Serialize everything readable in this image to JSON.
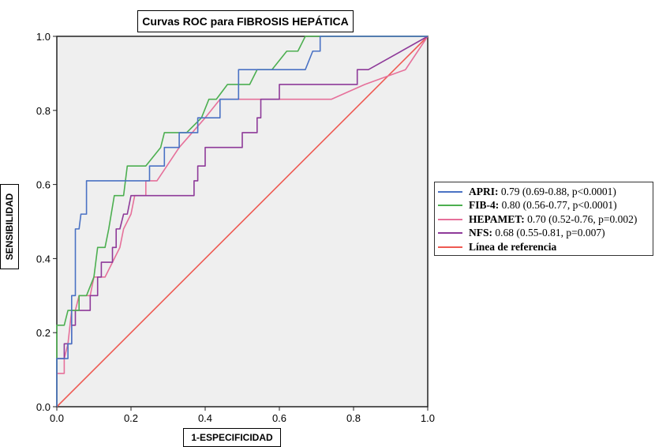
{
  "chart_data": {
    "type": "line",
    "title": "Curvas ROC para FIBROSIS HEPÁTICA",
    "xlabel": "1-ESPECIFICIDAD",
    "ylabel": "SENSIBILIDAD",
    "xlim": [
      0,
      1
    ],
    "ylim": [
      0,
      1
    ],
    "x_ticks": [
      "0.0",
      "0.2",
      "0.4",
      "0.6",
      "0.8",
      "1.0"
    ],
    "y_ticks": [
      "0.0",
      "0.2",
      "0.4",
      "0.6",
      "0.8",
      "1.0"
    ],
    "grid": false,
    "legend_position": "right",
    "series": [
      {
        "name": "APRI:",
        "stats": "0.79 (0.69-0.88, p<0.0001)",
        "color": "#4a72c4",
        "points": [
          [
            0,
            0
          ],
          [
            0,
            0.13
          ],
          [
            0.03,
            0.13
          ],
          [
            0.03,
            0.17
          ],
          [
            0.04,
            0.17
          ],
          [
            0.04,
            0.3
          ],
          [
            0.05,
            0.3
          ],
          [
            0.05,
            0.48
          ],
          [
            0.06,
            0.48
          ],
          [
            0.065,
            0.52
          ],
          [
            0.08,
            0.52
          ],
          [
            0.08,
            0.61
          ],
          [
            0.25,
            0.61
          ],
          [
            0.25,
            0.65
          ],
          [
            0.29,
            0.65
          ],
          [
            0.29,
            0.7
          ],
          [
            0.33,
            0.7
          ],
          [
            0.33,
            0.74
          ],
          [
            0.38,
            0.74
          ],
          [
            0.38,
            0.78
          ],
          [
            0.44,
            0.78
          ],
          [
            0.44,
            0.83
          ],
          [
            0.49,
            0.83
          ],
          [
            0.49,
            0.91
          ],
          [
            0.57,
            0.91
          ],
          [
            0.67,
            0.91
          ],
          [
            0.69,
            0.96
          ],
          [
            0.71,
            0.96
          ],
          [
            0.71,
            1
          ],
          [
            1,
            1
          ]
        ]
      },
      {
        "name": "FIB-4:",
        "stats": "0.80 (0.56-0.77, p<0.0001)",
        "color": "#4caf50",
        "points": [
          [
            0,
            0
          ],
          [
            0,
            0.22
          ],
          [
            0.02,
            0.22
          ],
          [
            0.03,
            0.26
          ],
          [
            0.06,
            0.26
          ],
          [
            0.06,
            0.3
          ],
          [
            0.08,
            0.3
          ],
          [
            0.1,
            0.35
          ],
          [
            0.11,
            0.43
          ],
          [
            0.13,
            0.43
          ],
          [
            0.14,
            0.48
          ],
          [
            0.155,
            0.57
          ],
          [
            0.18,
            0.57
          ],
          [
            0.19,
            0.65
          ],
          [
            0.24,
            0.65
          ],
          [
            0.28,
            0.7
          ],
          [
            0.29,
            0.74
          ],
          [
            0.35,
            0.74
          ],
          [
            0.39,
            0.78
          ],
          [
            0.41,
            0.83
          ],
          [
            0.43,
            0.83
          ],
          [
            0.46,
            0.87
          ],
          [
            0.48,
            0.87
          ],
          [
            0.52,
            0.87
          ],
          [
            0.54,
            0.91
          ],
          [
            0.58,
            0.91
          ],
          [
            0.62,
            0.96
          ],
          [
            0.65,
            0.96
          ],
          [
            0.67,
            1
          ],
          [
            1,
            1
          ]
        ]
      },
      {
        "name": "HEPAMET:",
        "stats": "0.70 (0.52-0.76, p=0.002)",
        "color": "#e6709a",
        "points": [
          [
            0,
            0
          ],
          [
            0,
            0.09
          ],
          [
            0.02,
            0.09
          ],
          [
            0.02,
            0.13
          ],
          [
            0.03,
            0.17
          ],
          [
            0.04,
            0.26
          ],
          [
            0.05,
            0.26
          ],
          [
            0.06,
            0.3
          ],
          [
            0.09,
            0.3
          ],
          [
            0.1,
            0.35
          ],
          [
            0.13,
            0.35
          ],
          [
            0.15,
            0.39
          ],
          [
            0.17,
            0.43
          ],
          [
            0.18,
            0.48
          ],
          [
            0.2,
            0.52
          ],
          [
            0.21,
            0.57
          ],
          [
            0.24,
            0.57
          ],
          [
            0.24,
            0.61
          ],
          [
            0.27,
            0.61
          ],
          [
            0.33,
            0.7
          ],
          [
            0.4,
            0.78
          ],
          [
            0.44,
            0.83
          ],
          [
            0.49,
            0.83
          ],
          [
            0.74,
            0.83
          ],
          [
            0.83,
            0.87
          ],
          [
            0.94,
            0.91
          ],
          [
            1,
            1
          ]
        ]
      },
      {
        "name": "NFS:",
        "stats": "0.68 (0.55-0.81, p=0.007)",
        "color": "#8e3a99",
        "points": [
          [
            0,
            0
          ],
          [
            0,
            0.13
          ],
          [
            0.02,
            0.13
          ],
          [
            0.02,
            0.17
          ],
          [
            0.04,
            0.17
          ],
          [
            0.04,
            0.22
          ],
          [
            0.05,
            0.22
          ],
          [
            0.05,
            0.26
          ],
          [
            0.07,
            0.26
          ],
          [
            0.09,
            0.26
          ],
          [
            0.09,
            0.3
          ],
          [
            0.11,
            0.3
          ],
          [
            0.11,
            0.35
          ],
          [
            0.12,
            0.35
          ],
          [
            0.12,
            0.39
          ],
          [
            0.15,
            0.39
          ],
          [
            0.15,
            0.43
          ],
          [
            0.16,
            0.43
          ],
          [
            0.16,
            0.48
          ],
          [
            0.17,
            0.48
          ],
          [
            0.18,
            0.52
          ],
          [
            0.19,
            0.52
          ],
          [
            0.2,
            0.57
          ],
          [
            0.37,
            0.57
          ],
          [
            0.37,
            0.61
          ],
          [
            0.38,
            0.61
          ],
          [
            0.38,
            0.65
          ],
          [
            0.4,
            0.65
          ],
          [
            0.4,
            0.7
          ],
          [
            0.49,
            0.7
          ],
          [
            0.5,
            0.7
          ],
          [
            0.5,
            0.74
          ],
          [
            0.54,
            0.74
          ],
          [
            0.54,
            0.78
          ],
          [
            0.55,
            0.78
          ],
          [
            0.55,
            0.83
          ],
          [
            0.6,
            0.83
          ],
          [
            0.6,
            0.87
          ],
          [
            0.81,
            0.87
          ],
          [
            0.81,
            0.91
          ],
          [
            0.84,
            0.91
          ],
          [
            1,
            1
          ]
        ]
      },
      {
        "name": "Línea de referencia",
        "stats": "",
        "color": "#ee5a52",
        "points": [
          [
            0,
            0
          ],
          [
            1,
            1
          ]
        ]
      }
    ]
  }
}
